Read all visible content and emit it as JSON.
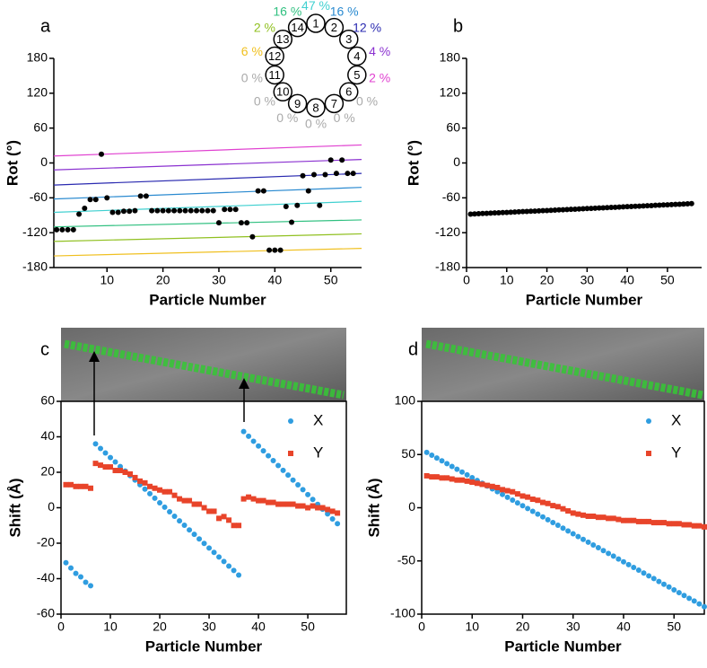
{
  "chart_data": [
    {
      "type": "scatter",
      "panel": "a",
      "xlabel": "Particle Number",
      "ylabel": "Rot (°)",
      "xlim": [
        0.5,
        55.5
      ],
      "xticks": [
        10,
        20,
        30,
        40,
        50
      ],
      "ylim": [
        -180,
        180
      ],
      "yticks": [
        -180,
        -120,
        -60,
        0,
        60,
        120,
        180
      ],
      "x": [
        1,
        2,
        3,
        4,
        5,
        6,
        7,
        8,
        9,
        10,
        11,
        12,
        13,
        14,
        15,
        16,
        17,
        18,
        19,
        20,
        21,
        22,
        23,
        24,
        25,
        26,
        27,
        28,
        29,
        30,
        31,
        32,
        33,
        34,
        35,
        36,
        37,
        38,
        39,
        40,
        41,
        42,
        43,
        44,
        45,
        46,
        47,
        48,
        49,
        50,
        51,
        52,
        53,
        54
      ],
      "series": [
        {
          "color": "#000000",
          "marker": "circle",
          "values": [
            -115,
            -115,
            -115,
            -115,
            -88,
            -78,
            -63,
            -63,
            15,
            -60,
            -85,
            -85,
            -83,
            -83,
            -82,
            -57,
            -57,
            -82,
            -82,
            -82,
            -82,
            -82,
            -82,
            -82,
            -82,
            -82,
            -82,
            -82,
            -82,
            -103,
            -80,
            -80,
            -80,
            -103,
            -103,
            -127,
            -48,
            -48,
            -150,
            -150,
            -150,
            -75,
            -102,
            -73,
            -22,
            -48,
            -20,
            -73,
            -20,
            5,
            -18,
            5,
            -18,
            -18
          ]
        }
      ],
      "fit_lines": [
        {
          "color": "#e040d0",
          "x": [
            0.5,
            55.5
          ],
          "values": [
            12,
            31
          ]
        },
        {
          "color": "#8a30d0",
          "x": [
            0.5,
            55.5
          ],
          "values": [
            -12,
            6
          ]
        },
        {
          "color": "#2a2ab0",
          "x": [
            0.5,
            55.5
          ],
          "values": [
            -38,
            -18
          ]
        },
        {
          "color": "#2a8ad0",
          "x": [
            0.5,
            55.5
          ],
          "values": [
            -62,
            -42
          ]
        },
        {
          "color": "#40d0d0",
          "x": [
            0.5,
            55.5
          ],
          "values": [
            -85,
            -66
          ]
        },
        {
          "color": "#30c080",
          "x": [
            0.5,
            55.5
          ],
          "values": [
            -110,
            -98
          ]
        },
        {
          "color": "#90c020",
          "x": [
            0.5,
            55.5
          ],
          "values": [
            -135,
            -122
          ]
        },
        {
          "color": "#f0c020",
          "x": [
            0.5,
            55.5
          ],
          "values": [
            -160,
            -147
          ]
        }
      ],
      "diagram": {
        "nodes": [
          {
            "label": "1",
            "percent": "47 %",
            "color": "#40d0d0"
          },
          {
            "label": "2",
            "percent": "16 %",
            "color": "#2a8ad0"
          },
          {
            "label": "3",
            "percent": "12 %",
            "color": "#2a2ab0"
          },
          {
            "label": "4",
            "percent": "4 %",
            "color": "#8a30d0"
          },
          {
            "label": "5",
            "percent": "2 %",
            "color": "#e040d0"
          },
          {
            "label": "6",
            "percent": "0 %",
            "color": "#aaaaaa"
          },
          {
            "label": "7",
            "percent": "0 %",
            "color": "#aaaaaa"
          },
          {
            "label": "8",
            "percent": "0 %",
            "color": "#aaaaaa"
          },
          {
            "label": "9",
            "percent": "0 %",
            "color": "#aaaaaa"
          },
          {
            "label": "10",
            "percent": "0 %",
            "color": "#aaaaaa"
          },
          {
            "label": "11",
            "percent": "0 %",
            "color": "#aaaaaa"
          },
          {
            "label": "12",
            "percent": "6 %",
            "color": "#f0c020"
          },
          {
            "label": "13",
            "percent": "2 %",
            "color": "#90c020"
          },
          {
            "label": "14",
            "percent": "16 %",
            "color": "#30c080"
          }
        ]
      }
    },
    {
      "type": "scatter",
      "panel": "b",
      "xlabel": "Particle Number",
      "ylabel": "Rot (°)",
      "xlim": [
        0,
        58.5
      ],
      "xticks": [
        0,
        10,
        20,
        30,
        40,
        50
      ],
      "ylim": [
        -180,
        180
      ],
      "yticks": [
        -180,
        -120,
        -60,
        0,
        60,
        120,
        180
      ],
      "x": [
        1,
        2,
        3,
        4,
        5,
        6,
        7,
        8,
        9,
        10,
        11,
        12,
        13,
        14,
        15,
        16,
        17,
        18,
        19,
        20,
        21,
        22,
        23,
        24,
        25,
        26,
        27,
        28,
        29,
        30,
        31,
        32,
        33,
        34,
        35,
        36,
        37,
        38,
        39,
        40,
        41,
        42,
        43,
        44,
        45,
        46,
        47,
        48,
        49,
        50,
        51,
        52,
        53,
        54,
        55,
        56
      ],
      "series": [
        {
          "color": "#000000",
          "marker": "circle",
          "values": [
            -88,
            -87.7,
            -87.3,
            -87,
            -86.7,
            -86.4,
            -86,
            -85.7,
            -85.4,
            -85.1,
            -84.7,
            -84.4,
            -84.1,
            -83.7,
            -83.4,
            -83.1,
            -82.8,
            -82.4,
            -82.1,
            -81.8,
            -81.5,
            -81.1,
            -80.8,
            -80.5,
            -80.1,
            -79.8,
            -79.5,
            -79.2,
            -78.8,
            -78.5,
            -78.2,
            -77.9,
            -77.5,
            -77.2,
            -76.9,
            -76.5,
            -76.2,
            -75.9,
            -75.6,
            -75.2,
            -74.9,
            -74.6,
            -74.3,
            -73.9,
            -73.6,
            -73.3,
            -72.9,
            -72.6,
            -72.3,
            -72,
            -71.6,
            -71.3,
            -71,
            -70.7,
            -70.3,
            -70
          ]
        }
      ]
    },
    {
      "type": "scatter",
      "panel": "c",
      "xlabel": "Particle Number",
      "ylabel": "Shift (Å)",
      "legend": "upper right",
      "xlim": [
        0,
        57.8
      ],
      "xticks": [
        0,
        10,
        20,
        30,
        40,
        50
      ],
      "ylim": [
        -60,
        60
      ],
      "yticks": [
        -60,
        -40,
        -20,
        0,
        20,
        40,
        60
      ],
      "x": [
        1,
        2,
        3,
        4,
        5,
        6,
        7,
        8,
        9,
        10,
        11,
        12,
        13,
        14,
        15,
        16,
        17,
        18,
        19,
        20,
        21,
        22,
        23,
        24,
        25,
        26,
        27,
        28,
        29,
        30,
        31,
        32,
        33,
        34,
        35,
        36,
        37,
        38,
        39,
        40,
        41,
        42,
        43,
        44,
        45,
        46,
        47,
        48,
        49,
        50,
        51,
        52,
        53,
        54,
        55,
        56
      ],
      "series": [
        {
          "name": "X",
          "color": "#2f9de0",
          "marker": "circle",
          "values": [
            -31,
            -34,
            -37,
            -39,
            -42,
            -44,
            36,
            33.4,
            30.9,
            28.3,
            25.8,
            23.2,
            20.7,
            18.1,
            15.6,
            13,
            10.5,
            7.9,
            5.4,
            2.8,
            0.3,
            -2.3,
            -4.8,
            -7.4,
            -9.9,
            -12.5,
            -15,
            -17.6,
            -20.1,
            -22.7,
            -25.2,
            -27.8,
            -30.3,
            -32.9,
            -35.4,
            -38,
            43,
            40.3,
            37.5,
            34.8,
            32.1,
            29.3,
            26.6,
            23.8,
            21.1,
            18.4,
            15.6,
            12.9,
            10.2,
            7.4,
            4.7,
            1.9,
            -0.8,
            -3.5,
            -6.3,
            -9
          ]
        },
        {
          "name": "Y",
          "color": "#e8442a",
          "marker": "square",
          "values": [
            13,
            13,
            12,
            12,
            12,
            11,
            25,
            24,
            23,
            23,
            21,
            21,
            20,
            19,
            17,
            15,
            14,
            12,
            11,
            10,
            9,
            9,
            7,
            5,
            4,
            4,
            2,
            2,
            0,
            -2,
            -2,
            -6,
            -5,
            -7,
            -10,
            -10,
            5,
            6,
            5,
            4,
            4,
            3,
            3,
            2,
            2,
            2,
            2,
            1,
            1,
            0,
            1,
            0,
            0,
            -1,
            -2,
            -3
          ]
        }
      ]
    },
    {
      "type": "scatter",
      "panel": "d",
      "xlabel": "Particle Number",
      "ylabel": "Shift (Å)",
      "legend": "upper right",
      "xlim": [
        0,
        56
      ],
      "xticks": [
        0,
        10,
        20,
        30,
        40,
        50
      ],
      "ylim": [
        -100,
        100
      ],
      "yticks": [
        -100,
        -50,
        0,
        50,
        100
      ],
      "x": [
        1,
        2,
        3,
        4,
        5,
        6,
        7,
        8,
        9,
        10,
        11,
        12,
        13,
        14,
        15,
        16,
        17,
        18,
        19,
        20,
        21,
        22,
        23,
        24,
        25,
        26,
        27,
        28,
        29,
        30,
        31,
        32,
        33,
        34,
        35,
        36,
        37,
        38,
        39,
        40,
        41,
        42,
        43,
        44,
        45,
        46,
        47,
        48,
        49,
        50,
        51,
        52,
        53,
        54,
        55,
        56
      ],
      "series": [
        {
          "name": "X",
          "color": "#2f9de0",
          "marker": "circle",
          "values": [
            52,
            49.4,
            46.7,
            44.1,
            41.5,
            38.8,
            36.2,
            33.5,
            30.9,
            28.3,
            25.6,
            23,
            20.4,
            17.7,
            15.1,
            12.5,
            9.8,
            7.2,
            4.5,
            1.9,
            -0.7,
            -3.4,
            -6,
            -8.6,
            -11.3,
            -13.9,
            -16.5,
            -19.2,
            -21.8,
            -24.5,
            -27.1,
            -29.7,
            -32.4,
            -35,
            -37.6,
            -40.3,
            -42.9,
            -45.5,
            -48.2,
            -50.8,
            -53.5,
            -56.1,
            -58.7,
            -61.4,
            -64,
            -66.6,
            -69.3,
            -71.9,
            -74.5,
            -77.2,
            -79.8,
            -82.5,
            -85.1,
            -87.7,
            -90.4,
            -93
          ]
        },
        {
          "name": "Y",
          "color": "#e8442a",
          "marker": "square",
          "values": [
            30,
            29,
            29,
            28,
            28,
            27,
            26,
            26,
            25,
            24,
            23,
            22,
            21,
            20,
            19,
            17,
            16,
            15,
            13,
            11,
            10,
            8,
            7,
            5,
            4,
            2,
            1,
            -1,
            -3,
            -5,
            -6,
            -7,
            -8,
            -8,
            -9,
            -9,
            -10,
            -10,
            -11,
            -12,
            -12,
            -12,
            -13,
            -13,
            -13,
            -14,
            -14,
            -14,
            -15,
            -15,
            -15,
            -16,
            -16,
            -17,
            -17,
            -18
          ]
        }
      ]
    }
  ]
}
